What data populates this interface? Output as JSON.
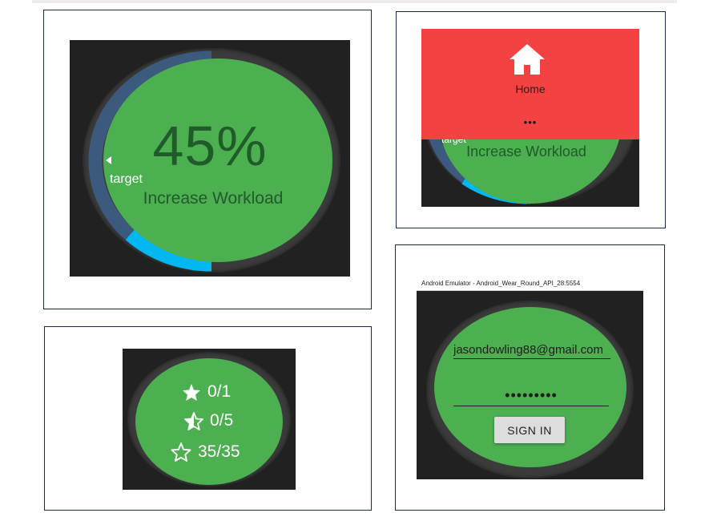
{
  "colors": {
    "watch_face": "#4caf50",
    "menu_red": "#f44141",
    "progress_cyan": "#00b7f0",
    "target_arc_blue": "#3c5a7d",
    "background": "#212121"
  },
  "progress_screen": {
    "percent_text": "45%",
    "progress_fraction": 0.45,
    "message": "Increase Workload",
    "target_label": "target"
  },
  "menu_screen": {
    "home_icon": "home-icon",
    "home_label": "Home",
    "more_indicator": "•••",
    "target_label": "target",
    "message": "Increase Workload"
  },
  "stats_screen": {
    "rows": [
      {
        "icon": "star-filled-icon",
        "value": "0/1"
      },
      {
        "icon": "star-half-icon",
        "value": "0/5"
      },
      {
        "icon": "star-outline-icon",
        "value": "35/35"
      }
    ]
  },
  "login_screen": {
    "window_title": "Android Emulator - Android_Wear_Round_API_28:5554",
    "email_value": "jasondowling88@gmail.com",
    "password_mask": "•••••••••",
    "signin_label": "SIGN IN"
  }
}
